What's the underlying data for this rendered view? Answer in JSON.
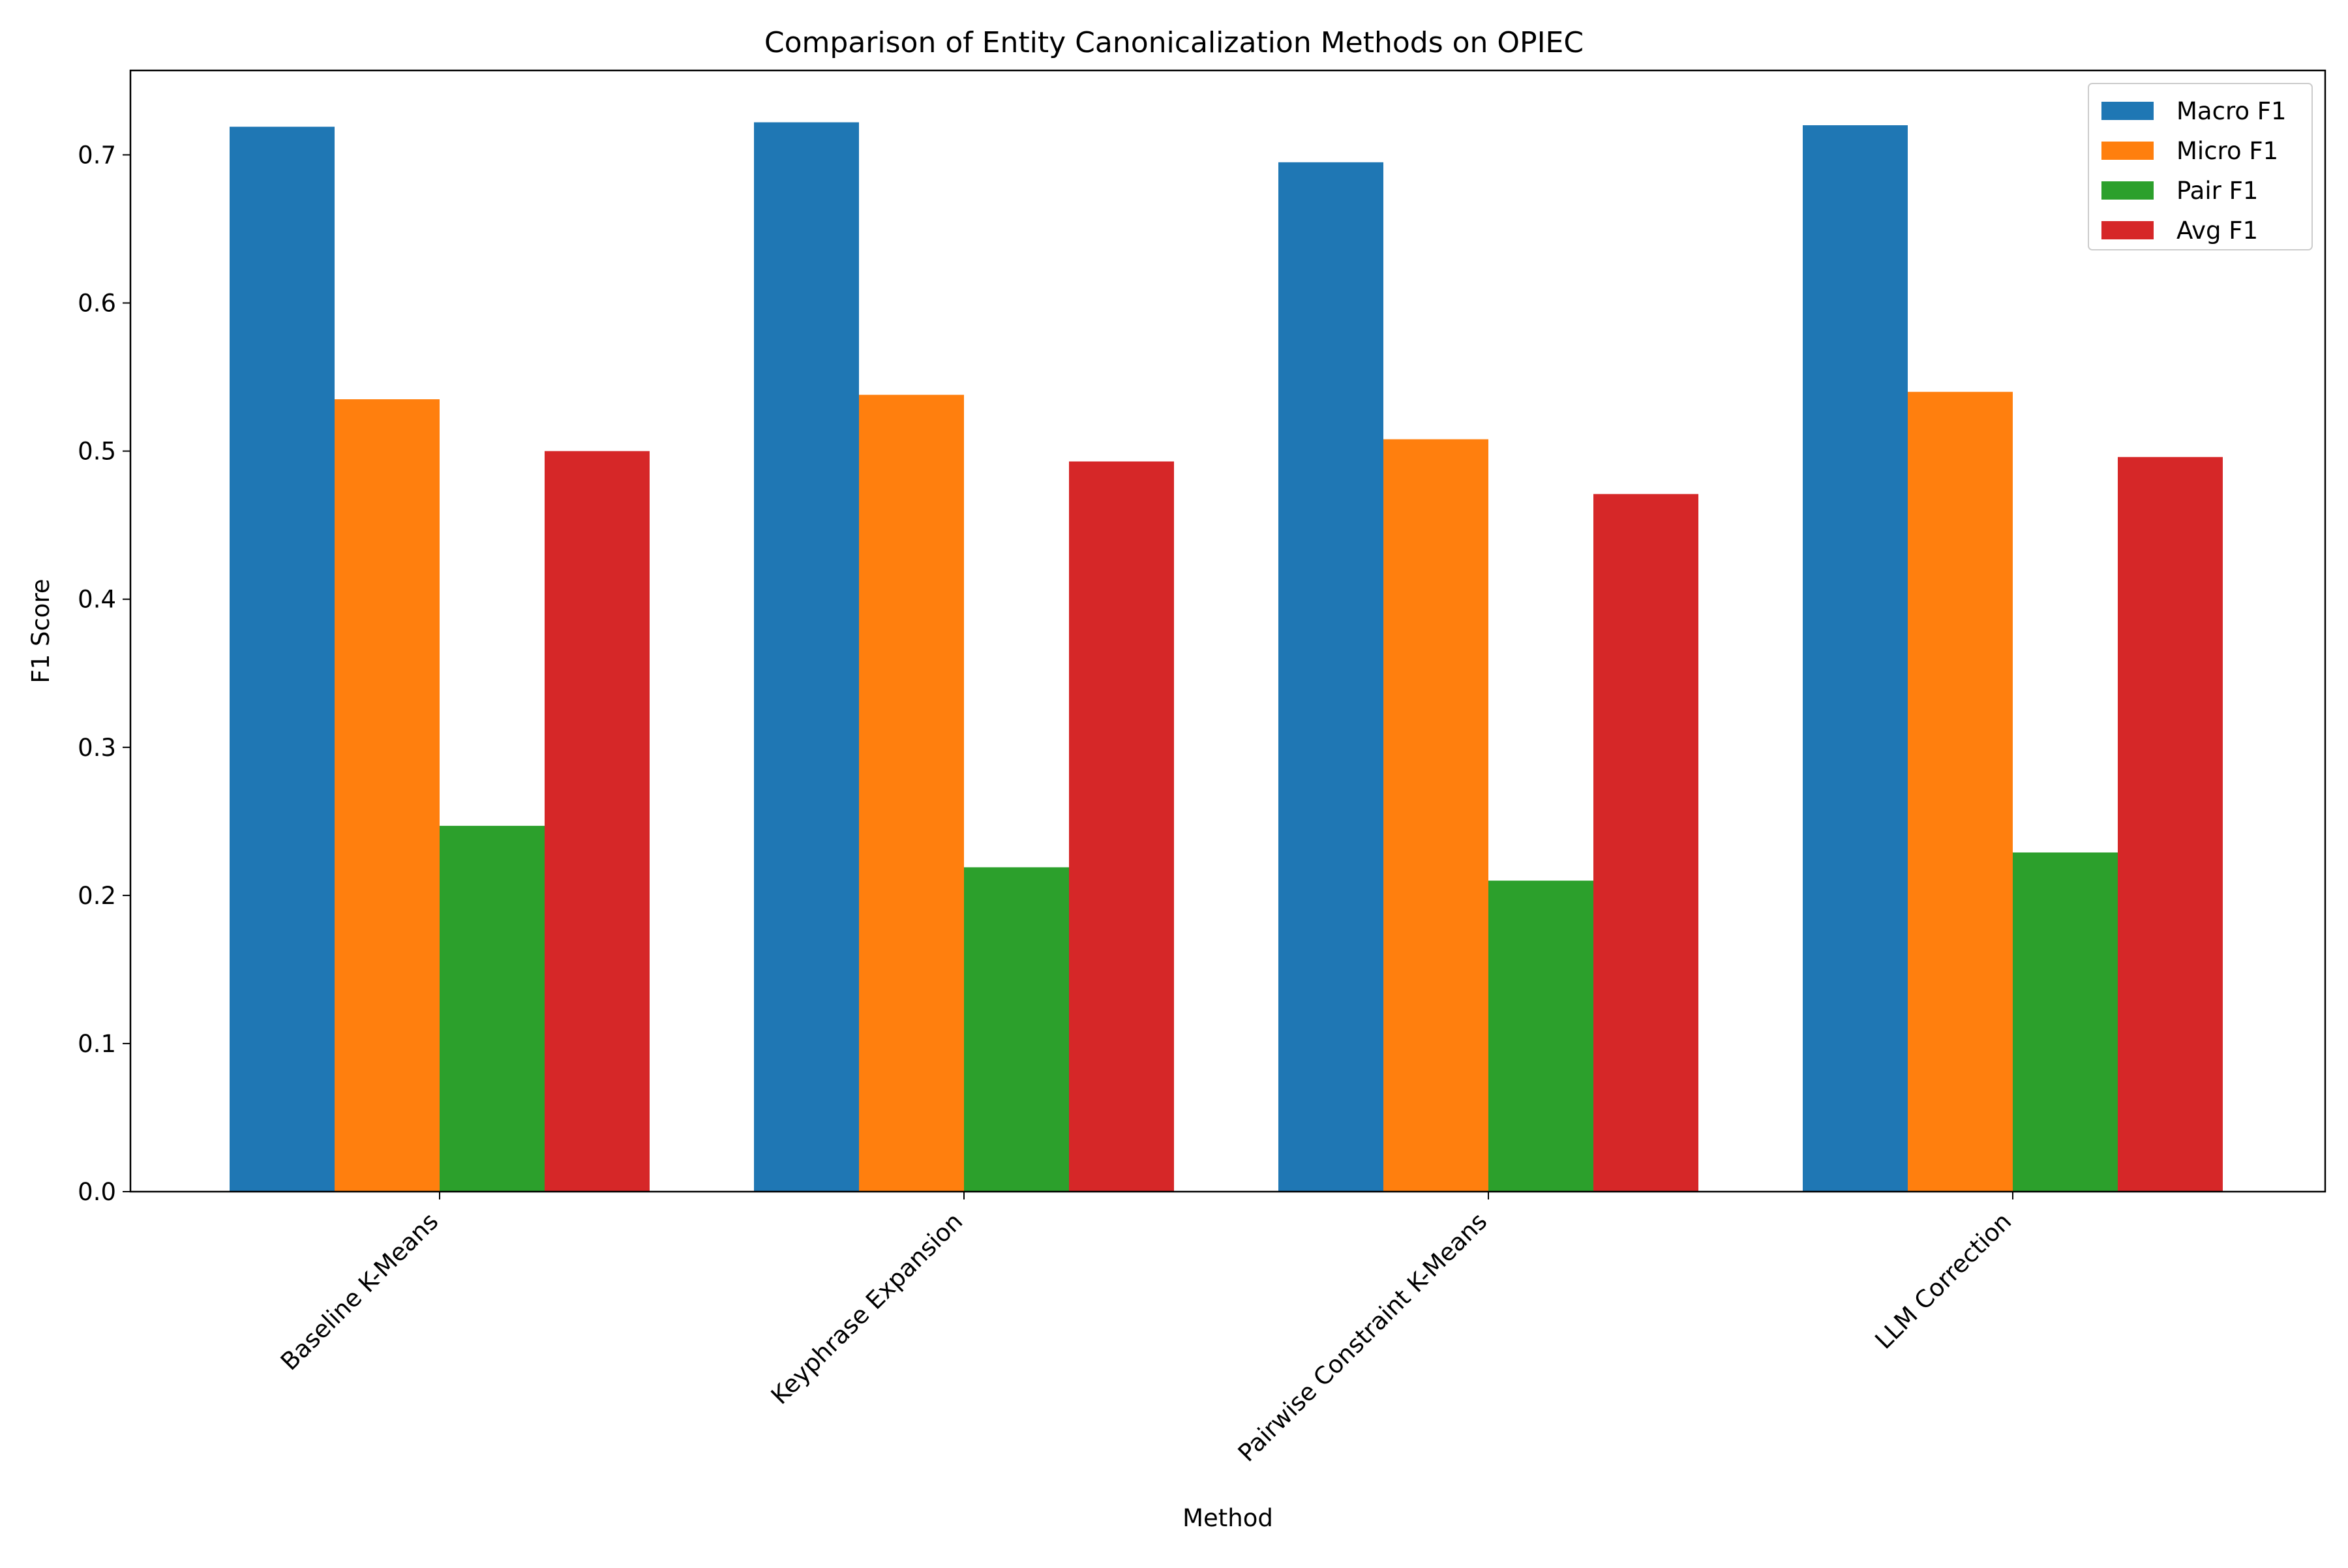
{
  "chart_data": {
    "type": "bar",
    "title": "Comparison of Entity Canonicalization Methods on OPIEC",
    "xlabel": "Method",
    "ylabel": "F1 Score",
    "categories": [
      "Baseline K-Means",
      "Keyphrase Expansion",
      "Pairwise Constraint K-Means",
      "LLM Correction"
    ],
    "series": [
      {
        "name": "Macro F1",
        "color": "#1f77b4",
        "values": [
          0.719,
          0.722,
          0.695,
          0.72
        ]
      },
      {
        "name": "Micro F1",
        "color": "#ff7f0e",
        "values": [
          0.535,
          0.538,
          0.508,
          0.54
        ]
      },
      {
        "name": "Pair F1",
        "color": "#2ca02c",
        "values": [
          0.247,
          0.219,
          0.21,
          0.229
        ]
      },
      {
        "name": "Avg F1",
        "color": "#d62728",
        "values": [
          0.5,
          0.493,
          0.471,
          0.496
        ]
      }
    ],
    "ylim": [
      0,
      0.757
    ],
    "yticks": [
      0.0,
      0.1,
      0.2,
      0.3,
      0.4,
      0.5,
      0.6,
      0.7
    ],
    "ytick_labels": [
      "0.0",
      "0.1",
      "0.2",
      "0.3",
      "0.4",
      "0.5",
      "0.6",
      "0.7"
    ],
    "grid": false,
    "legend_position": "top-right"
  }
}
